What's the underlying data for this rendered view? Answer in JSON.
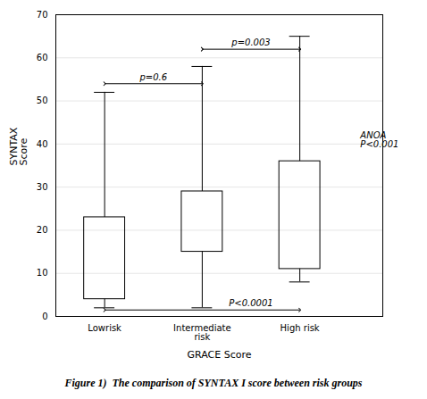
{
  "chart_data": {
    "type": "box",
    "xlabel": "GRACE Score",
    "ylabel": "SYNTAX\nScore",
    "categories": [
      "Lowrisk",
      "Intermediate\nrisk",
      "High risk"
    ],
    "boxes": [
      {
        "whislo": 2,
        "q1": 4,
        "q3": 23,
        "whishi": 52
      },
      {
        "whislo": 2,
        "q1": 15,
        "q3": 29,
        "whishi": 58
      },
      {
        "whislo": 8,
        "q1": 11,
        "q3": 36,
        "whishi": 65
      }
    ],
    "ylim": [
      0,
      70
    ],
    "yticks": [
      0,
      10,
      20,
      30,
      40,
      50,
      60,
      70
    ],
    "grid": true,
    "caption": "Figure 1)  The comparison of SYNTAX I score between risk groups",
    "annotations": [
      {
        "text": "p=0.6",
        "from": "Lowrisk",
        "to": "Intermediate\nrisk",
        "y": 54
      },
      {
        "text": "p=0.003",
        "from": "Intermediate\nrisk",
        "to": "High risk",
        "y": 62
      },
      {
        "text": "P<0.0001",
        "from": "Lowrisk",
        "to": "High risk",
        "y": 1.5
      },
      {
        "text": "ANOA\nP<0.001",
        "y": 41
      }
    ]
  }
}
